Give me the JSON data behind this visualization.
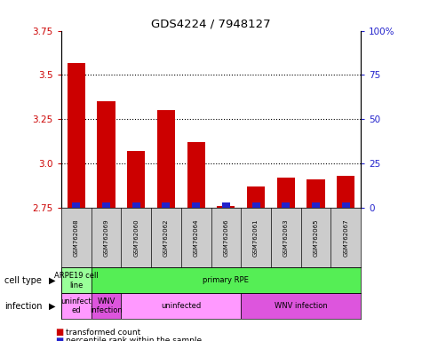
{
  "title": "GDS4224 / 7948127",
  "samples": [
    "GSM762068",
    "GSM762069",
    "GSM762060",
    "GSM762062",
    "GSM762064",
    "GSM762066",
    "GSM762061",
    "GSM762063",
    "GSM762065",
    "GSM762067"
  ],
  "transformed_count": [
    3.57,
    3.35,
    3.07,
    3.3,
    3.12,
    2.76,
    2.87,
    2.92,
    2.91,
    2.93
  ],
  "percentile_rank": [
    10,
    9,
    8,
    9,
    9,
    5,
    8,
    9,
    9,
    9
  ],
  "bar_base": 2.75,
  "ylim": [
    2.75,
    3.75
  ],
  "yticks": [
    2.75,
    3.0,
    3.25,
    3.5,
    3.75
  ],
  "y2ticks": [
    0,
    25,
    50,
    75,
    100
  ],
  "red_color": "#cc0000",
  "blue_color": "#2222cc",
  "infection_groups": [
    {
      "label": "uninfect\ned",
      "start": 0,
      "end": 1,
      "color": "#ff99ff"
    },
    {
      "label": "WNV\ninfection",
      "start": 1,
      "end": 2,
      "color": "#dd55dd"
    },
    {
      "label": "uninfected",
      "start": 2,
      "end": 6,
      "color": "#ff99ff"
    },
    {
      "label": "WNV infection",
      "start": 6,
      "end": 10,
      "color": "#dd55dd"
    }
  ],
  "cell_type_groups": [
    {
      "label": "ARPE19 cell\nline",
      "start": 0,
      "end": 1,
      "color": "#99ff99"
    },
    {
      "label": "primary RPE",
      "start": 1,
      "end": 10,
      "color": "#55ee55"
    }
  ],
  "bg_color": "#cccccc",
  "plot_bg": "#ffffff",
  "left_label_color": "#000000",
  "arrow_char": "▶"
}
